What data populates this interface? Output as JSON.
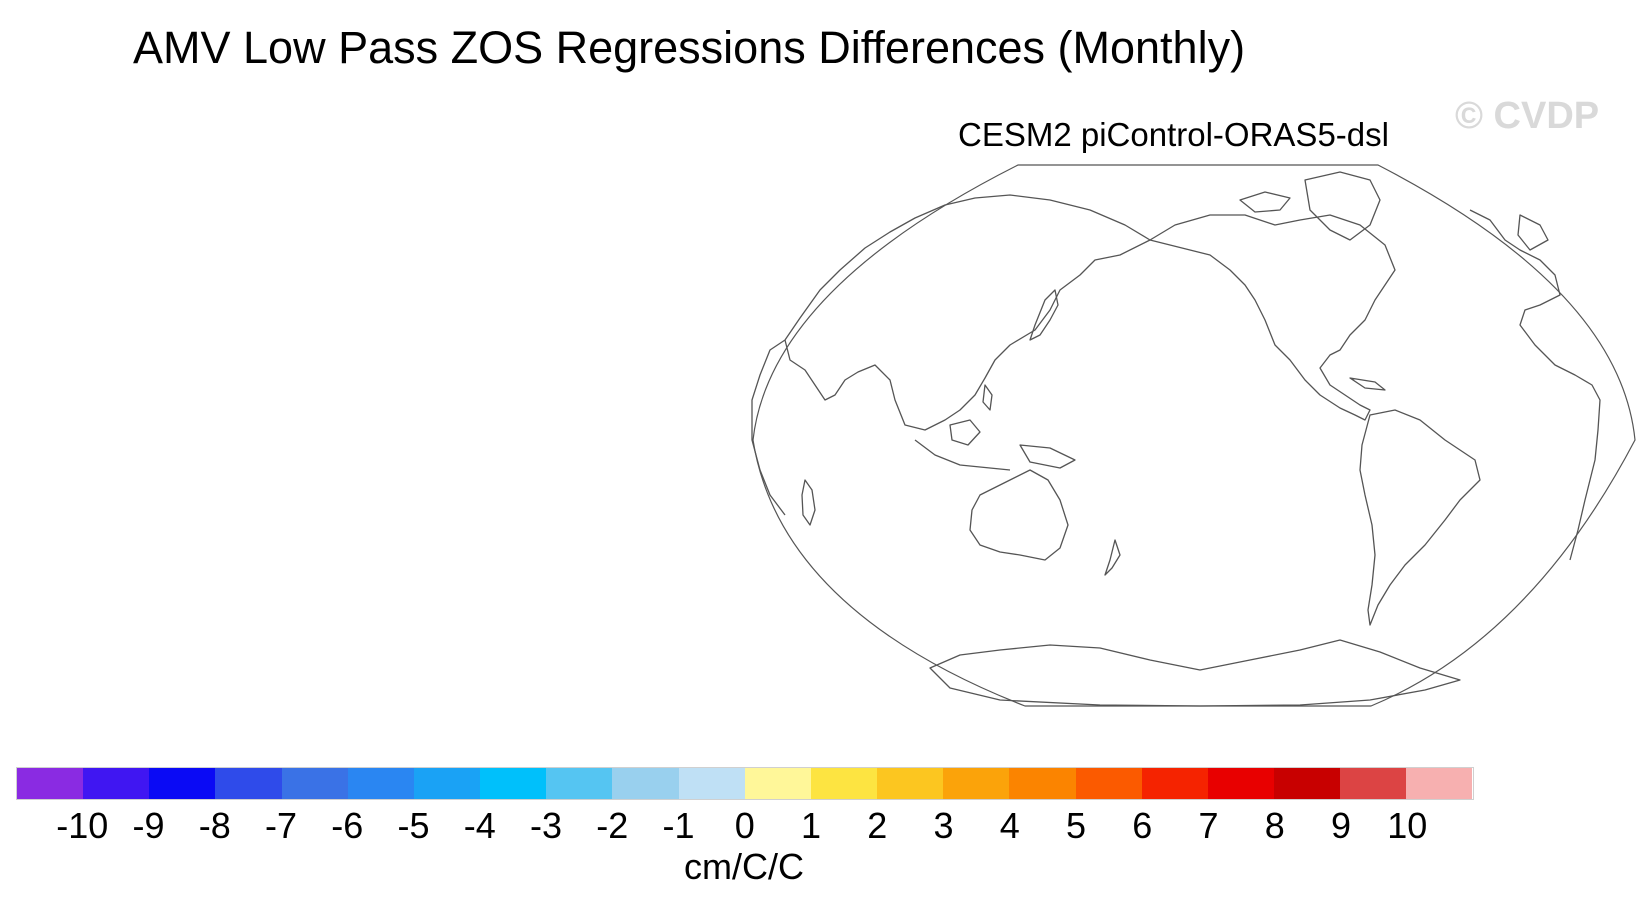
{
  "title": "AMV Low Pass ZOS Regressions Differences (Monthly)",
  "watermark": "© CVDP",
  "panel": {
    "subtitle": "CESM2 piControl-ORAS5-dsl",
    "projection": "Robinson, Pacific-centred (central longitude 210)",
    "field_shading": "none (blank)"
  },
  "colorbar": {
    "units": "cm/C/C",
    "tick_labels": [
      "-10",
      "-9",
      "-8",
      "-7",
      "-6",
      "-5",
      "-4",
      "-3",
      "-2",
      "-1",
      "0",
      "1",
      "2",
      "3",
      "4",
      "5",
      "6",
      "7",
      "8",
      "9",
      "10"
    ],
    "colors": [
      "#8a2be2",
      "#4016f2",
      "#0a0af5",
      "#2f4bea",
      "#3a72e6",
      "#2a86f2",
      "#1aa2f5",
      "#00c0fb",
      "#55c5f2",
      "#99d0ee",
      "#bfe0f5",
      "#fff799",
      "#fde441",
      "#fcc620",
      "#fba30a",
      "#fb8400",
      "#fb5a00",
      "#f52300",
      "#e80000",
      "#c80000",
      "#dc4444",
      "#f7b0b0"
    ]
  }
}
